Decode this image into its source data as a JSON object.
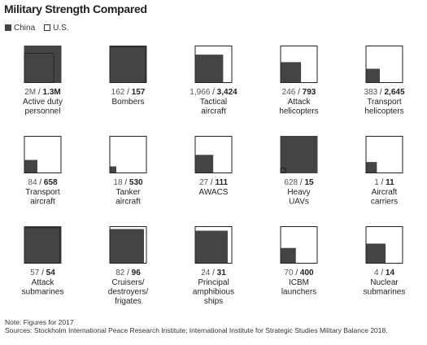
{
  "title": "Military Strength Compared",
  "legend": {
    "china_label": "China",
    "us_label": "U.S.",
    "china_color": "#444444",
    "us_color": "#ffffff"
  },
  "chart_data": {
    "type": "area-comparison",
    "series": [
      "China",
      "U.S."
    ],
    "items": [
      {
        "category_lines": [
          "Active duty",
          "personnel"
        ],
        "china": 2000000,
        "us": 1300000,
        "china_text": "2M",
        "us_text": "1.3M"
      },
      {
        "category_lines": [
          "Bombers"
        ],
        "china": 162,
        "us": 157,
        "china_text": "162",
        "us_text": "157"
      },
      {
        "category_lines": [
          "Tactical",
          "aircraft"
        ],
        "china": 1966,
        "us": 3424,
        "china_text": "1,966",
        "us_text": "3,424"
      },
      {
        "category_lines": [
          "Attack",
          "helicopters"
        ],
        "china": 246,
        "us": 793,
        "china_text": "246",
        "us_text": "793"
      },
      {
        "category_lines": [
          "Transport",
          "helicopters"
        ],
        "china": 383,
        "us": 2645,
        "china_text": "383",
        "us_text": "2,645"
      },
      {
        "category_lines": [
          "Transport",
          "aircraft"
        ],
        "china": 84,
        "us": 658,
        "china_text": "84",
        "us_text": "658"
      },
      {
        "category_lines": [
          "Tanker",
          "aircraft"
        ],
        "china": 18,
        "us": 530,
        "china_text": "18",
        "us_text": "530"
      },
      {
        "category_lines": [
          "AWACS"
        ],
        "china": 27,
        "us": 111,
        "china_text": "27",
        "us_text": "111"
      },
      {
        "category_lines": [
          "Heavy",
          "UAVs"
        ],
        "china": 628,
        "us": 15,
        "china_text": "628",
        "us_text": "15"
      },
      {
        "category_lines": [
          "Aircraft",
          "carriers"
        ],
        "china": 1,
        "us": 11,
        "china_text": "1",
        "us_text": "11"
      },
      {
        "category_lines": [
          "Attack",
          "submarines"
        ],
        "china": 57,
        "us": 54,
        "china_text": "57",
        "us_text": "54"
      },
      {
        "category_lines": [
          "Cruisers/",
          "destroyers/",
          "frigates"
        ],
        "china": 82,
        "us": 96,
        "china_text": "82",
        "us_text": "96"
      },
      {
        "category_lines": [
          "Principal",
          "amphibious",
          "ships"
        ],
        "china": 24,
        "us": 31,
        "china_text": "24",
        "us_text": "31"
      },
      {
        "category_lines": [
          "ICBM",
          "launchers"
        ],
        "china": 70,
        "us": 400,
        "china_text": "70",
        "us_text": "400"
      },
      {
        "category_lines": [
          "Nuclear",
          "submarines"
        ],
        "china": 4,
        "us": 14,
        "china_text": "4",
        "us_text": "14"
      }
    ]
  },
  "notes": {
    "note": "Note: Figures for 2017",
    "sources": "Sources: Stockholm International Peace Research Institute; International Institute for Strategic Studies Military Balance 2018."
  }
}
